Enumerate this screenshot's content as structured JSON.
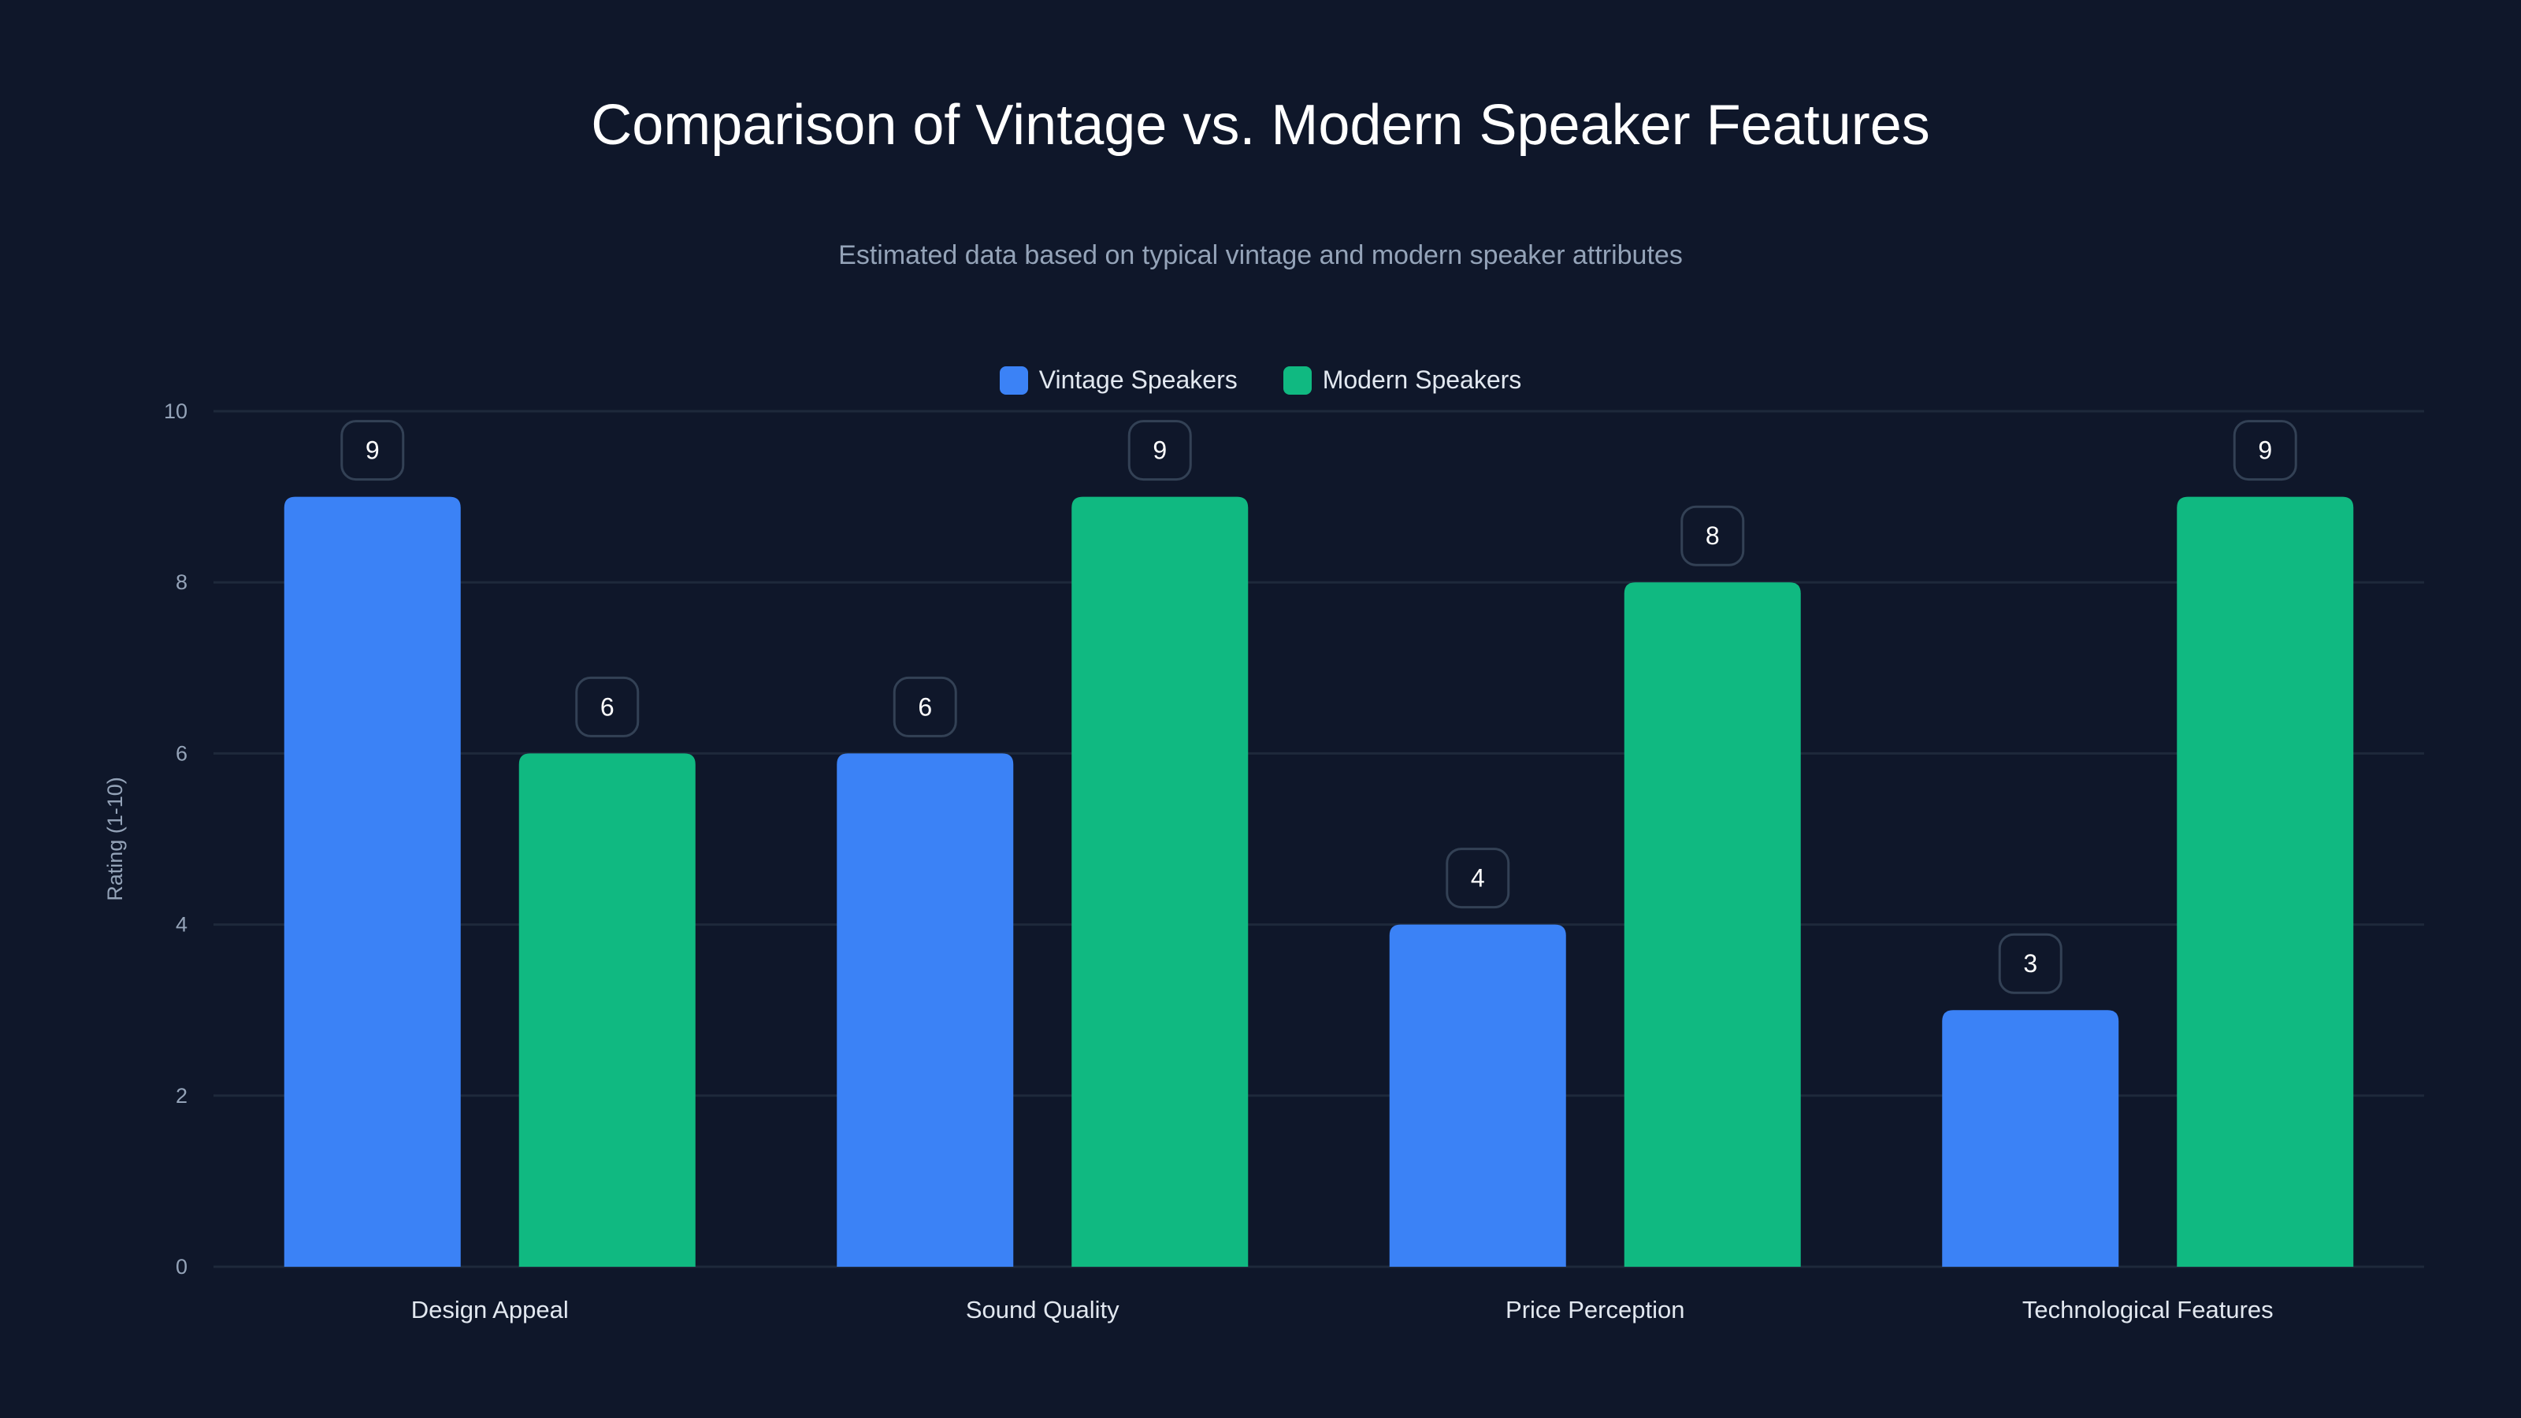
{
  "chart_data": {
    "type": "bar",
    "title": "Comparison of Vintage vs. Modern Speaker Features",
    "subtitle": "Estimated data based on typical vintage and modern speaker attributes",
    "xlabel": "",
    "ylabel": "Rating (1-10)",
    "ylim": [
      0,
      10
    ],
    "yticks": [
      0,
      2,
      4,
      6,
      8,
      10
    ],
    "grid": true,
    "legend_position": "top-center",
    "categories": [
      "Design Appeal",
      "Sound Quality",
      "Price Perception",
      "Technological Features"
    ],
    "series": [
      {
        "name": "Vintage Speakers",
        "color": "#3b82f6",
        "values": [
          9,
          6,
          4,
          3
        ]
      },
      {
        "name": "Modern Speakers",
        "color": "#10b981",
        "values": [
          6,
          9,
          8,
          9
        ]
      }
    ]
  }
}
